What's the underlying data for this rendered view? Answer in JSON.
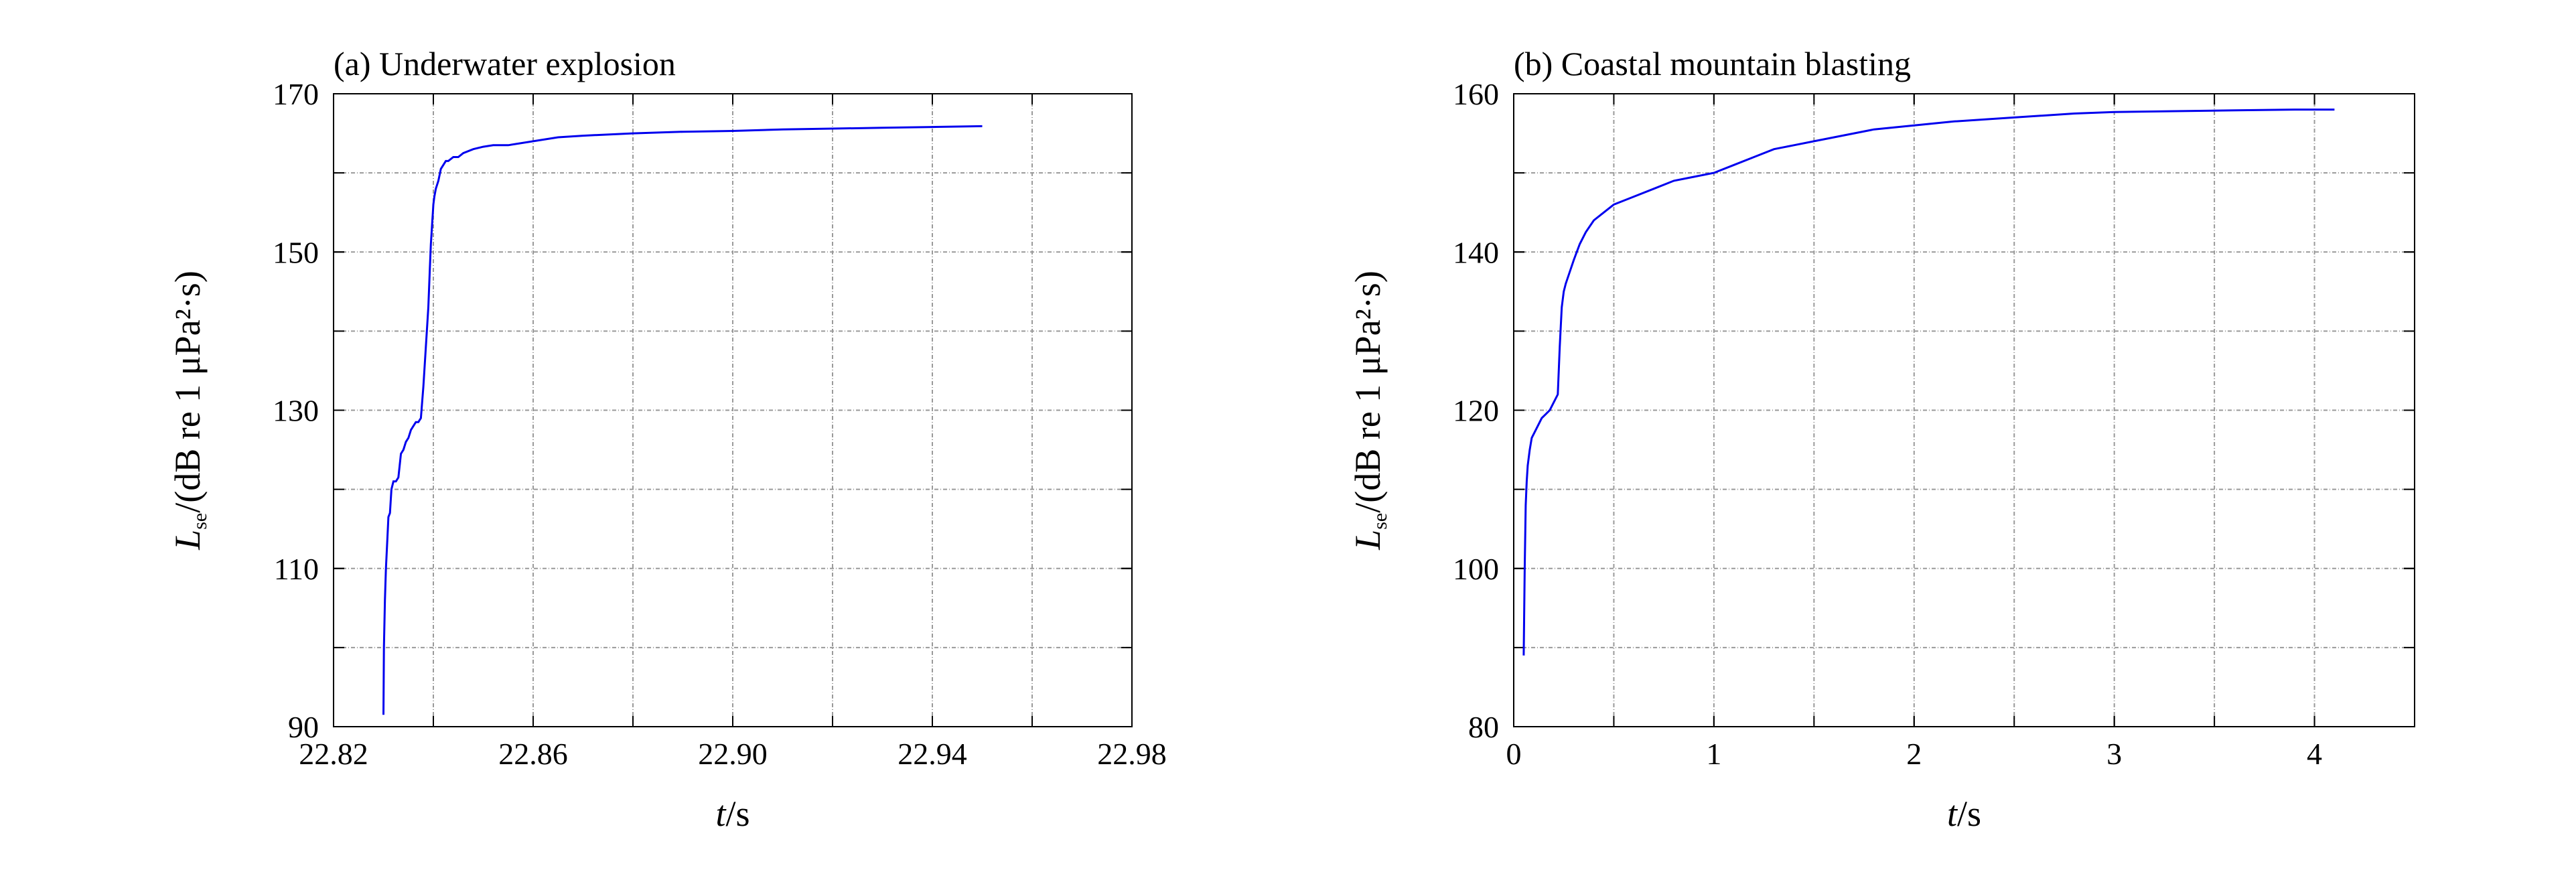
{
  "chart_data": [
    {
      "type": "line",
      "title": "(a) Underwater explosion",
      "xlabel": {
        "var": "t",
        "unit": "/s"
      },
      "ylabel": {
        "var": "L",
        "sub": "se",
        "unit": "/(dB re 1 μPa²·s)"
      },
      "xlim": [
        22.82,
        22.98
      ],
      "ylim": [
        90,
        170
      ],
      "xticks": [
        22.82,
        22.86,
        22.9,
        22.94,
        22.98
      ],
      "xtick_labels": [
        "22.82",
        "22.86",
        "22.90",
        "22.94",
        "22.98"
      ],
      "yticks": [
        90,
        110,
        130,
        150,
        170
      ],
      "ytick_labels": [
        "90",
        "110",
        "130",
        "150",
        "170"
      ],
      "grid_x": [
        22.84,
        22.86,
        22.88,
        22.9,
        22.92,
        22.94,
        22.96
      ],
      "grid_y": [
        100,
        110,
        120,
        130,
        140,
        150,
        160
      ],
      "grid": true,
      "line_color": "#0000ee",
      "series": [
        {
          "x": [
            22.83,
            22.8301,
            22.8303,
            22.8305,
            22.8308,
            22.831,
            22.8313,
            22.8316,
            22.832,
            22.8325,
            22.833,
            22.8335,
            22.834,
            22.8345,
            22.835,
            22.8355,
            22.836,
            22.8365,
            22.837,
            22.8375,
            22.838,
            22.8385,
            22.839,
            22.8393,
            22.8395,
            22.8397,
            22.8398,
            22.8399,
            22.84,
            22.8402,
            22.8405,
            22.841,
            22.8415,
            22.842,
            22.8425,
            22.843,
            22.844,
            22.845,
            22.846,
            22.848,
            22.85,
            22.852,
            22.855,
            22.86,
            22.865,
            22.87,
            22.88,
            22.89,
            22.9,
            22.91,
            22.92,
            22.93,
            22.94,
            22.95
          ],
          "y": [
            91.5,
            100,
            106,
            110,
            114,
            116.5,
            117,
            120,
            121,
            121,
            121.5,
            124.5,
            125,
            126,
            126.5,
            127.5,
            128,
            128.5,
            128.5,
            129,
            133,
            138,
            143,
            148,
            151,
            153,
            154,
            155,
            156,
            157,
            158,
            159,
            160.5,
            161,
            161.5,
            161.5,
            162,
            162,
            162.5,
            163,
            163.3,
            163.5,
            163.5,
            164,
            164.5,
            164.7,
            165,
            165.2,
            165.3,
            165.5,
            165.6,
            165.7,
            165.8,
            165.9
          ]
        }
      ]
    },
    {
      "type": "line",
      "title": "(b) Coastal mountain blasting",
      "xlabel": {
        "var": "t",
        "unit": "/s"
      },
      "ylabel": {
        "var": "L",
        "sub": "se",
        "unit": "/(dB re 1 μPa²·s)"
      },
      "xlim": [
        0,
        4.5
      ],
      "ylim": [
        80,
        160
      ],
      "xticks": [
        0,
        1,
        2,
        3,
        4
      ],
      "xtick_labels": [
        "0",
        "1",
        "2",
        "3",
        "4"
      ],
      "yticks": [
        80,
        100,
        120,
        140,
        160
      ],
      "ytick_labels": [
        "80",
        "100",
        "120",
        "140",
        "160"
      ],
      "grid_x": [
        0.5,
        1,
        1.5,
        2,
        2.5,
        3,
        3.5,
        4
      ],
      "grid_y": [
        90,
        100,
        110,
        120,
        130,
        140,
        150
      ],
      "grid": true,
      "line_color": "#0000ee",
      "series": [
        {
          "x": [
            0.05,
            0.055,
            0.06,
            0.065,
            0.07,
            0.08,
            0.09,
            0.1,
            0.12,
            0.14,
            0.16,
            0.18,
            0.2,
            0.22,
            0.23,
            0.24,
            0.245,
            0.25,
            0.26,
            0.28,
            0.3,
            0.33,
            0.36,
            0.4,
            0.45,
            0.5,
            0.55,
            0.6,
            0.7,
            0.8,
            0.9,
            1.0,
            1.1,
            1.2,
            1.3,
            1.4,
            1.5,
            1.6,
            1.8,
            2.0,
            2.2,
            2.5,
            2.8,
            3.0,
            3.3,
            3.6,
            3.9,
            4.1
          ],
          "y": [
            89,
            100,
            108,
            111,
            113,
            115,
            116.5,
            117,
            118,
            119,
            119.5,
            120,
            121,
            122,
            128,
            133,
            134,
            135,
            136,
            137.5,
            139,
            141,
            142.5,
            144,
            145,
            146,
            146.5,
            147,
            148,
            149,
            149.5,
            150,
            151,
            152,
            153,
            153.5,
            154,
            154.5,
            155.5,
            156,
            156.5,
            157,
            157.5,
            157.7,
            157.8,
            157.9,
            158,
            158
          ]
        }
      ]
    }
  ]
}
